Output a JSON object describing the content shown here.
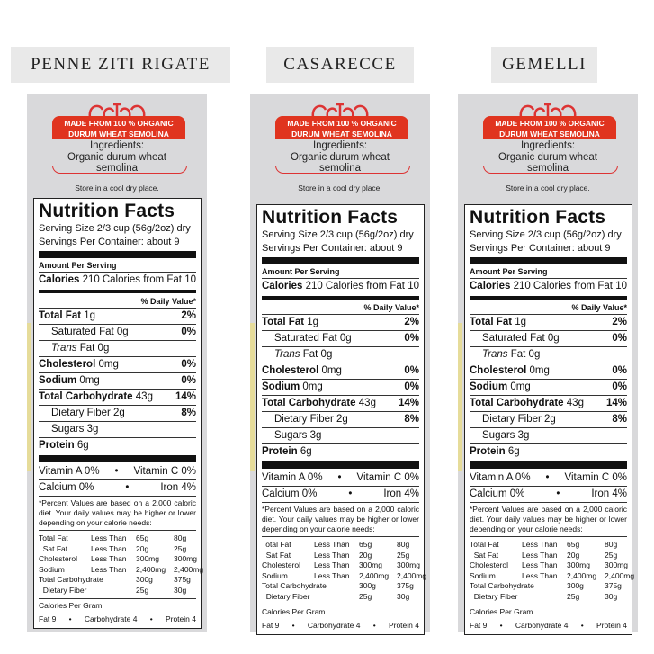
{
  "products": [
    {
      "title": "PENNE ZITI RIGATE"
    },
    {
      "title": "CASARECCE"
    },
    {
      "title": "GEMELLI"
    }
  ],
  "package": {
    "banner_line1": "MADE FROM 100 % ORGANIC",
    "banner_line2": "DURUM WHEAT SEMOLINA",
    "ingredients_label": "Ingredients:",
    "ingredients": "Organic durum wheat semolina",
    "storage": "Store in a cool dry place.",
    "colors": {
      "banner": "#e0341f",
      "panel": "#d9d9db"
    }
  },
  "label": {
    "title": "Nutrition Facts",
    "serving_size": "Serving Size 2/3 cup (56g/2oz) dry",
    "servings": "Servings Per Container: about 9",
    "amount_per_serving": "Amount Per Serving",
    "calories_label": "Calories",
    "calories": "210",
    "calories_fat": "Calories from Fat 10",
    "daily_value_header": "% Daily Value*",
    "nutrients": [
      {
        "name": "Total Fat",
        "amount": "1g",
        "dv": "2%",
        "bold": true,
        "indent": false
      },
      {
        "name": "Saturated Fat",
        "amount": "0g",
        "dv": "0%",
        "bold": false,
        "indent": true
      },
      {
        "name": "Trans",
        "amount": "Fat 0g",
        "dv": "",
        "bold": false,
        "indent": true
      },
      {
        "name": "Cholesterol",
        "amount": "0mg",
        "dv": "0%",
        "bold": true,
        "indent": false
      },
      {
        "name": "Sodium",
        "amount": "0mg",
        "dv": "0%",
        "bold": true,
        "indent": false
      },
      {
        "name": "Total Carbohydrate",
        "amount": "43g",
        "dv": "14%",
        "bold": true,
        "indent": false
      },
      {
        "name": "Dietary Fiber",
        "amount": "2g",
        "dv": "8%",
        "bold": false,
        "indent": true
      },
      {
        "name": "Sugars",
        "amount": "3g",
        "dv": "",
        "bold": false,
        "indent": true
      },
      {
        "name": "Protein",
        "amount": "6g",
        "dv": "",
        "bold": true,
        "indent": false
      }
    ],
    "vitamins": [
      [
        "Vitamin A 0%",
        "Vitamin C 0%"
      ],
      [
        "Calcium 0%",
        "Iron 4%"
      ]
    ],
    "footnote": "*Percent Values are based on a 2,000 caloric diet. Your daily values may be higher or lower depending on your calorie needs:",
    "table": [
      [
        "Total Fat",
        "Less Than",
        "65g",
        "80g"
      ],
      [
        "  Sat Fat",
        "Less Than",
        "20g",
        "25g"
      ],
      [
        "Cholesterol",
        "Less Than",
        "300mg",
        "300mg"
      ],
      [
        "Sodium",
        "Less Than",
        "2,400mg",
        "2,400mg"
      ],
      [
        "Total Carbohydrate",
        "",
        "300g",
        "375g"
      ],
      [
        "  Dietary Fiber",
        "",
        "25g",
        "30g"
      ]
    ],
    "calories_per_gram": "Calories Per Gram",
    "per_gram": [
      "Fat 9",
      "Carbohydrate 4",
      "Protein 4"
    ]
  }
}
